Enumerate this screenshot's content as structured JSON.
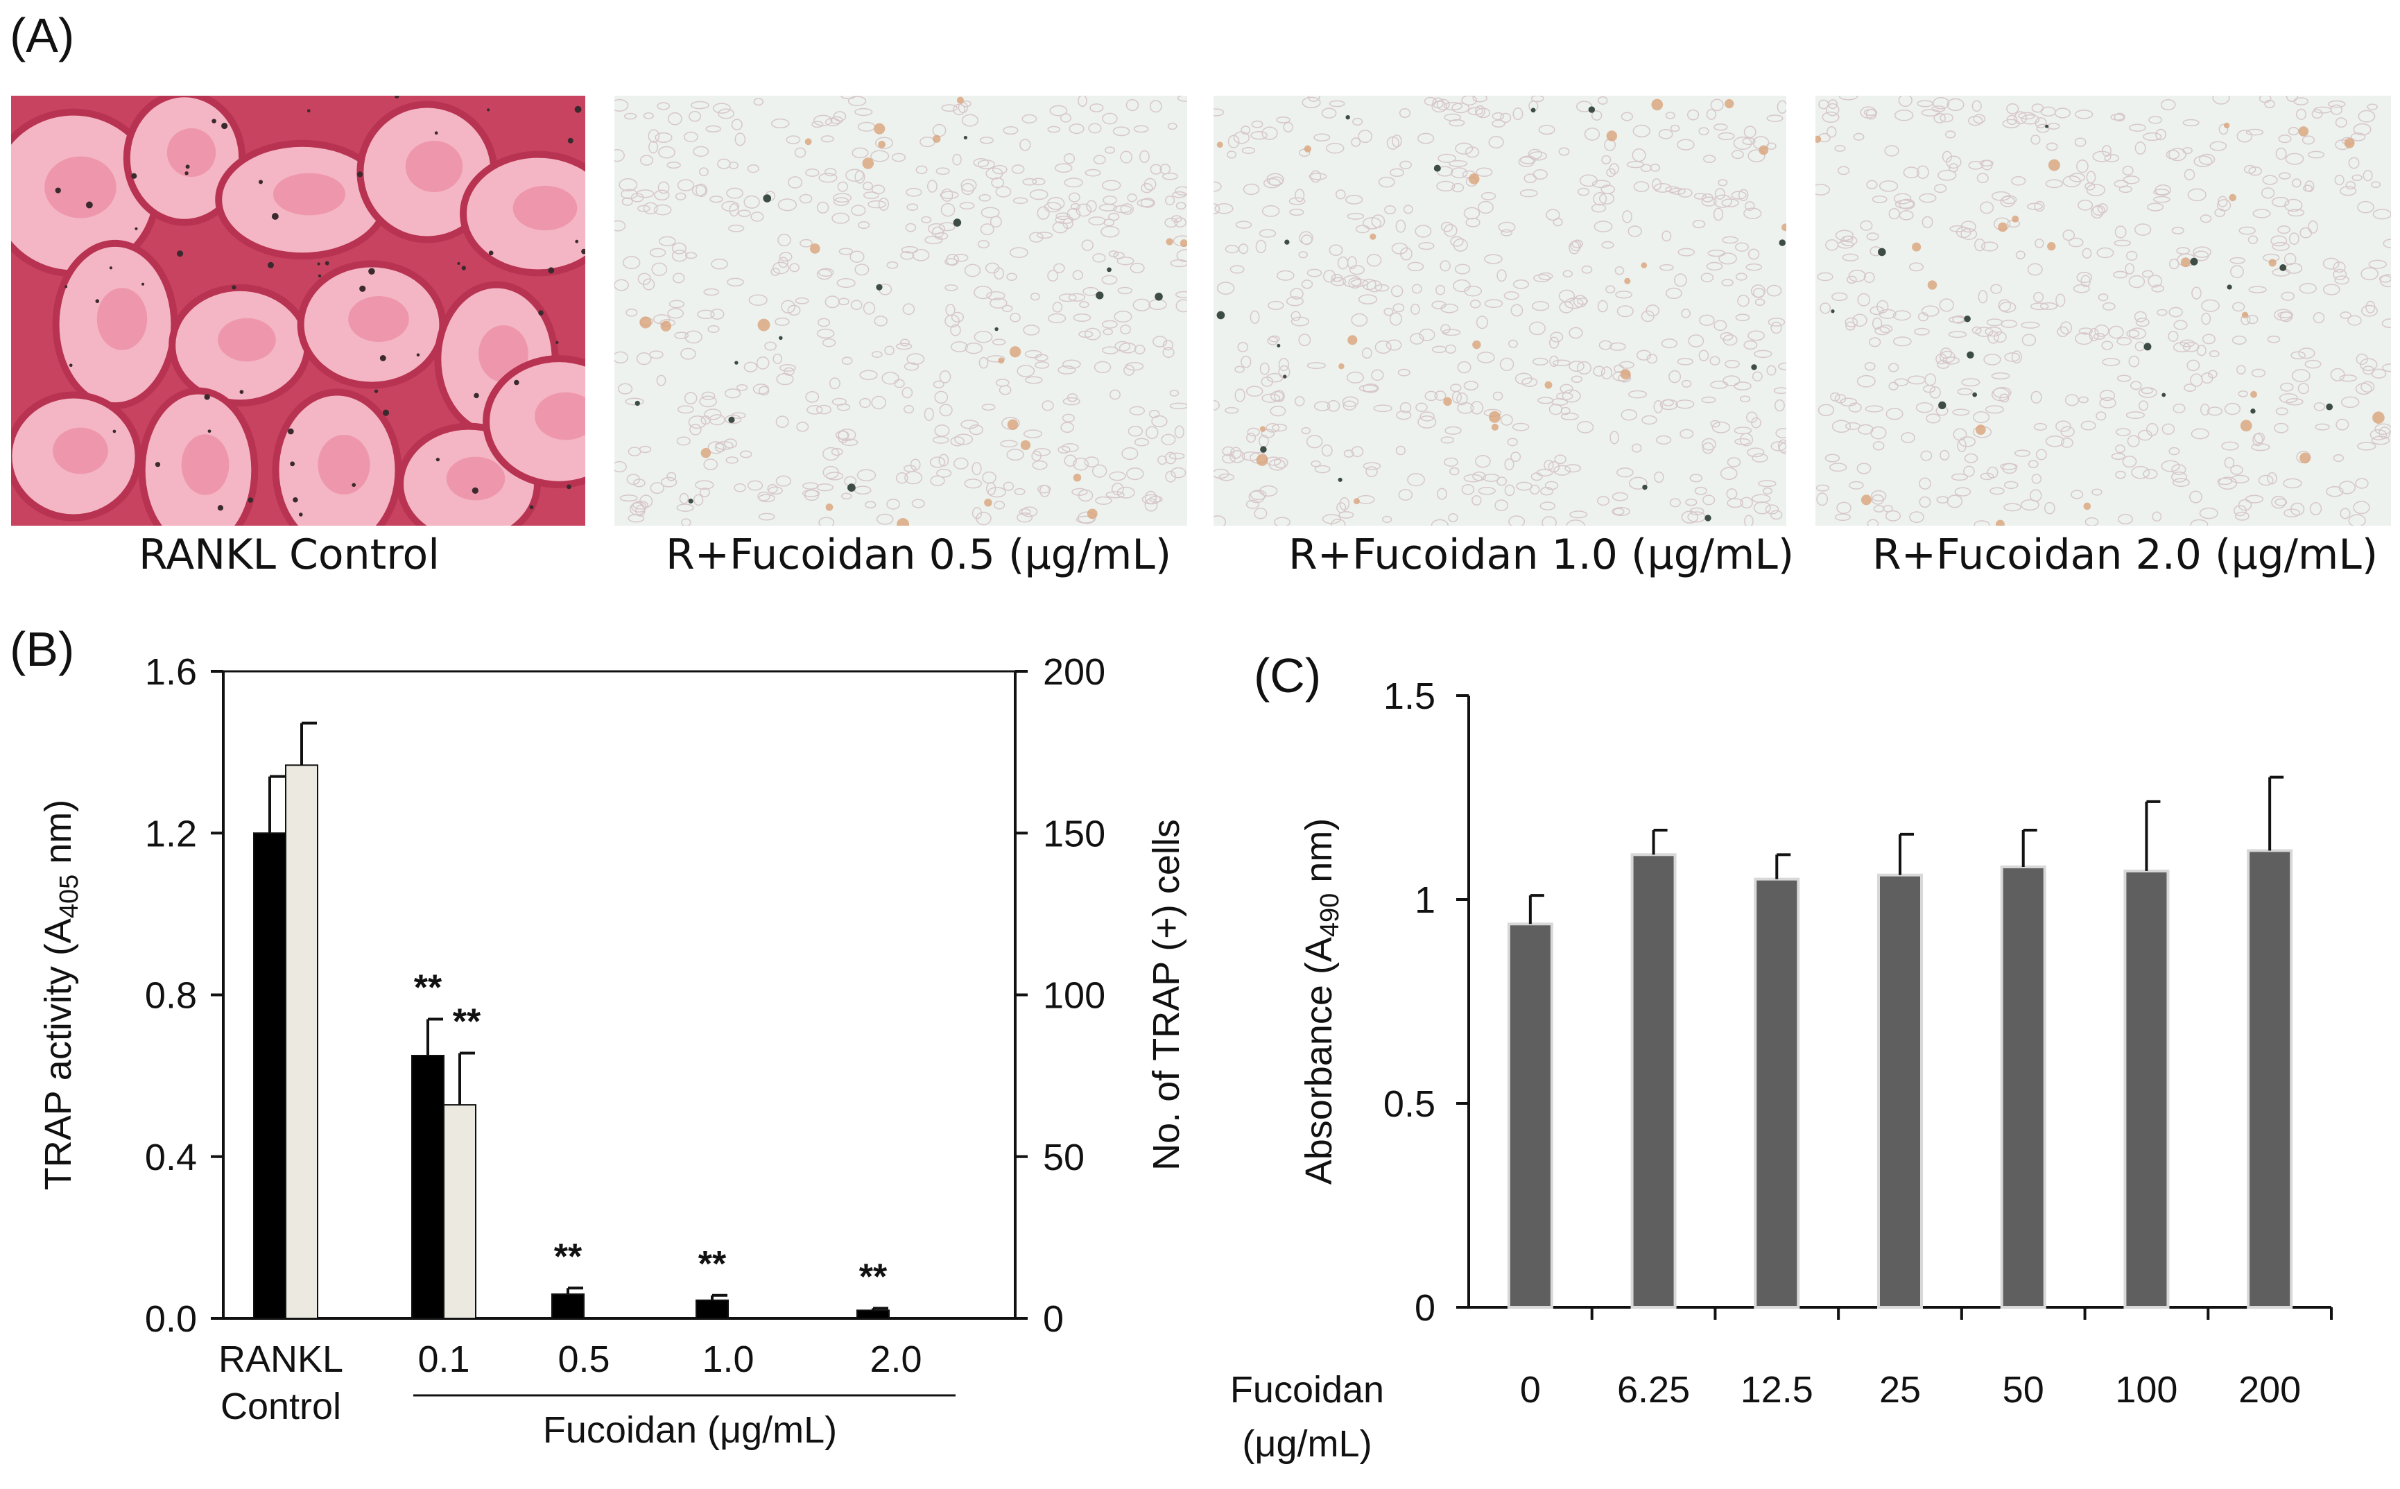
{
  "panels": {
    "a": {
      "letter": "(A)",
      "images": [
        {
          "caption": "RANKL Control",
          "style": "stained"
        },
        {
          "caption": "R+Fucoidan 0.5 (μg/mL)",
          "style": "sparse"
        },
        {
          "caption": "R+Fucoidan 1.0 (μg/mL)",
          "style": "sparse"
        },
        {
          "caption": "R+Fucoidan  2.0 (μg/mL)",
          "style": "sparse"
        }
      ]
    },
    "b": {
      "letter": "(B)"
    },
    "c": {
      "letter": "(C)"
    }
  },
  "colors": {
    "black_bar": "#000000",
    "light_bar": "#eceae0",
    "grey_bar": "#5f5f5f",
    "stain": "#e5577a"
  },
  "chart_data": [
    {
      "type": "bar",
      "panel": "B",
      "categories": [
        "RANKL Control",
        "0.1",
        "0.5",
        "1.0",
        "2.0"
      ],
      "category_lines": [
        [
          "RANKL",
          "Control"
        ],
        [
          "0.1"
        ],
        [
          "0.5"
        ],
        [
          "1.0"
        ],
        [
          "2.0"
        ]
      ],
      "group_label": "Fucoidan  (μg/mL)",
      "ylabel_left": "TRAP activity (A405 nm)",
      "ylabel_left_main": "TRAP activity (A",
      "ylabel_left_sub": "405",
      "ylabel_left_end": " nm)",
      "ylabel_right": "No. of TRAP (+) cells",
      "ylim_left": [
        0,
        1.6
      ],
      "yticks_left": [
        "0.0",
        "0.4",
        "0.8",
        "1.2",
        "1.6"
      ],
      "ylim_right": [
        0,
        200
      ],
      "yticks_right": [
        "0",
        "50",
        "100",
        "150",
        "200"
      ],
      "series": [
        {
          "axis": "left",
          "color": "#000000",
          "values": [
            1.2,
            0.65,
            0.06,
            0.045,
            0.02
          ],
          "errors": [
            0.14,
            0.09,
            0.015,
            0.012,
            0.005
          ]
        },
        {
          "axis": "right",
          "color": "#eceae0",
          "values": [
            171,
            66,
            0,
            0,
            0
          ],
          "errors": [
            13,
            16,
            0,
            0,
            0
          ]
        }
      ],
      "annotations": [
        {
          "category": 1,
          "series": 0,
          "text": "**"
        },
        {
          "category": 1,
          "series": 1,
          "text": "**"
        },
        {
          "category": 2,
          "series": 0,
          "text": "**"
        },
        {
          "category": 3,
          "series": 0,
          "text": "**"
        },
        {
          "category": 4,
          "series": 0,
          "text": "**"
        }
      ]
    },
    {
      "type": "bar",
      "panel": "C",
      "xlabel": "Fucoidan",
      "xlabel_unit": "(μg/mL)",
      "categories": [
        "0",
        "6.25",
        "12.5",
        "25",
        "50",
        "100",
        "200"
      ],
      "ylabel": "Absorbance (A490 nm)",
      "ylabel_main": "Absorbance (A",
      "ylabel_sub": "490",
      "ylabel_end": " nm)",
      "ylim": [
        0,
        1.5
      ],
      "yticks": [
        "0",
        "0.5",
        "1",
        "1.5"
      ],
      "series": [
        {
          "color": "#5f5f5f",
          "values": [
            0.94,
            1.11,
            1.05,
            1.06,
            1.08,
            1.07,
            1.12
          ],
          "errors": [
            0.07,
            0.06,
            0.06,
            0.1,
            0.09,
            0.17,
            0.18
          ]
        }
      ]
    }
  ]
}
